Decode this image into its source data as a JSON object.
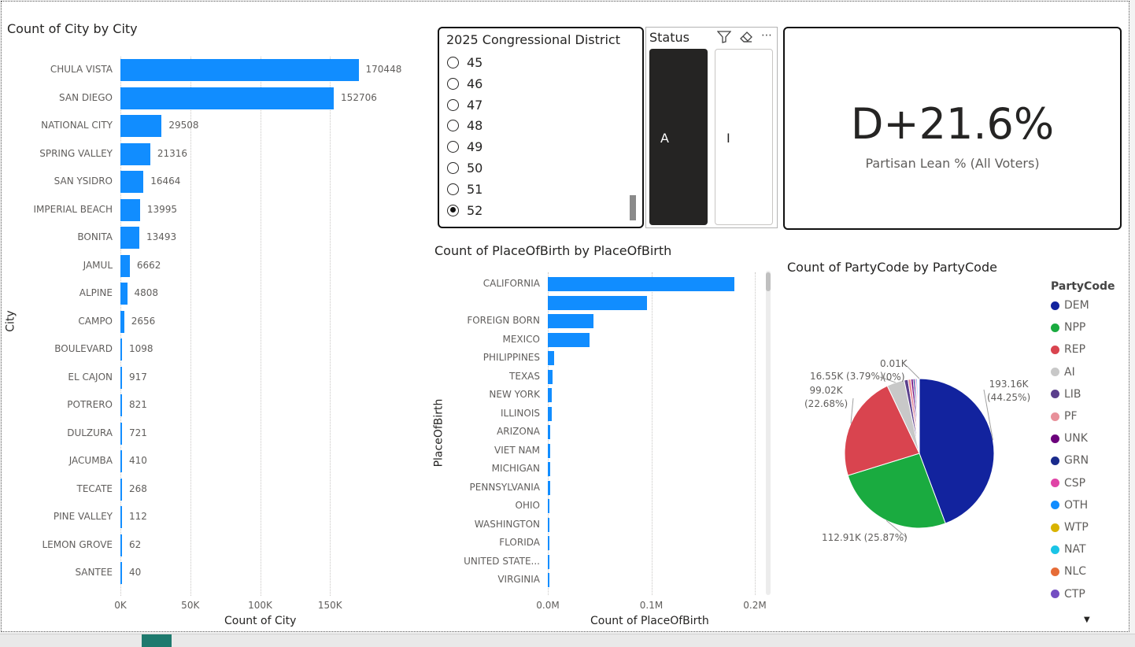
{
  "city_chart": {
    "title": "Count of City by City",
    "xlabel": "Count of City",
    "ylabel": "City"
  },
  "district_slicer": {
    "title": "2025 Congressional District",
    "options": [
      "45",
      "46",
      "47",
      "48",
      "49",
      "50",
      "51",
      "52"
    ],
    "selected": "52"
  },
  "status_slicer": {
    "title": "Status",
    "tiles": [
      "A",
      "I"
    ],
    "selected": "A"
  },
  "kpi": {
    "value": "D+21.6%",
    "label": "Partisan Lean % (All Voters)"
  },
  "birth_chart": {
    "title": "Count of PlaceOfBirth by PlaceOfBirth",
    "xlabel": "Count of PlaceOfBirth",
    "ylabel": "PlaceOfBirth"
  },
  "party_chart": {
    "title": "Count of PartyCode by PartyCode",
    "legend_title": "PartyCode"
  },
  "colors": {
    "bar": "#118dff",
    "slicer_selected": "#252423"
  },
  "chart_data": [
    {
      "type": "bar",
      "orientation": "horizontal",
      "title": "Count of City by City",
      "xlabel": "Count of City",
      "ylabel": "City",
      "categories": [
        "CHULA VISTA",
        "SAN DIEGO",
        "NATIONAL CITY",
        "SPRING VALLEY",
        "SAN YSIDRO",
        "IMPERIAL BEACH",
        "BONITA",
        "JAMUL",
        "ALPINE",
        "CAMPO",
        "BOULEVARD",
        "EL CAJON",
        "POTRERO",
        "DULZURA",
        "JACUMBA",
        "TECATE",
        "PINE VALLEY",
        "LEMON GROVE",
        "SANTEE"
      ],
      "values": [
        170448,
        152706,
        29508,
        21316,
        16464,
        13995,
        13493,
        6662,
        4808,
        2656,
        1098,
        917,
        821,
        721,
        410,
        268,
        112,
        62,
        40
      ],
      "data_labels": [
        "170448",
        "152706",
        "29508",
        "21316",
        "16464",
        "13995",
        "13493",
        "6662",
        "4808",
        "2656",
        "1098",
        "917",
        "821",
        "721",
        "410",
        "268",
        "112",
        "62",
        "40"
      ],
      "xlim": [
        0,
        200000
      ],
      "xticks": [
        0,
        50000,
        100000,
        150000
      ],
      "xtick_labels": [
        "0K",
        "50K",
        "100K",
        "150K"
      ],
      "grid": true
    },
    {
      "type": "bar",
      "orientation": "horizontal",
      "title": "Count of PlaceOfBirth by PlaceOfBirth",
      "xlabel": "Count of PlaceOfBirth",
      "ylabel": "PlaceOfBirth",
      "categories": [
        "CALIFORNIA",
        "",
        "FOREIGN BORN",
        "MEXICO",
        "PHILIPPINES",
        "TEXAS",
        "NEW YORK",
        "ILLINOIS",
        "ARIZONA",
        "VIET NAM",
        "MICHIGAN",
        "PENNSYLVANIA",
        "OHIO",
        "WASHINGTON",
        "FLORIDA",
        "UNITED STATE...",
        "VIRGINIA"
      ],
      "values": [
        180000,
        96000,
        44000,
        40000,
        6000,
        4500,
        4000,
        3500,
        2500,
        2400,
        2200,
        2000,
        1900,
        1800,
        1700,
        1600,
        1500
      ],
      "xlim": [
        0,
        200000
      ],
      "xticks": [
        0,
        100000,
        200000
      ],
      "xtick_labels": [
        "0.0M",
        "0.1M",
        "0.2M"
      ],
      "grid": true
    },
    {
      "type": "pie",
      "title": "Count of PartyCode by PartyCode",
      "legend_title": "PartyCode",
      "legend_position": "right",
      "categories": [
        "DEM",
        "NPP",
        "REP",
        "AI",
        "LIB",
        "PF",
        "UNK",
        "GRN",
        "CSP",
        "OTH",
        "WTP",
        "NAT",
        "NLC",
        "CTP"
      ],
      "colors": [
        "#12239e",
        "#1aab40",
        "#d9444f",
        "#c8c8c8",
        "#5b3f8c",
        "#e8909a",
        "#6b007b",
        "#1a2b8c",
        "#e044a7",
        "#118dff",
        "#d9b300",
        "#1ac4e6",
        "#e66c37",
        "#744ec2"
      ],
      "values": [
        193160,
        112910,
        99020,
        16550,
        3600,
        2800,
        2000,
        1600,
        1300,
        1100,
        800,
        600,
        400,
        10
      ],
      "data_labels": [
        {
          "category": "DEM",
          "text": "193.16K (44.25%)"
        },
        {
          "category": "NPP",
          "text": "112.91K (25.87%)"
        },
        {
          "category": "REP",
          "text": "99.02K (22.68%)"
        },
        {
          "category": "AI",
          "text": "16.55K (3.79%)"
        },
        {
          "category": "CTP",
          "text": "0.01K (0%)"
        }
      ]
    }
  ]
}
